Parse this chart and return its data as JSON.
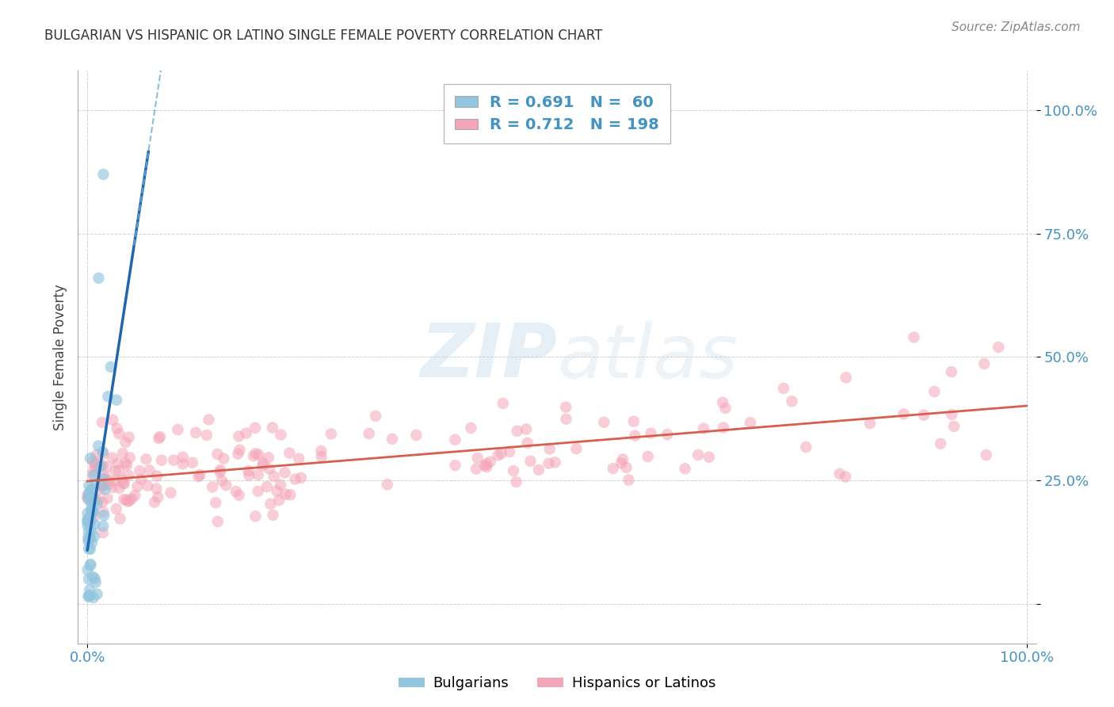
{
  "title": "BULGARIAN VS HISPANIC OR LATINO SINGLE FEMALE POVERTY CORRELATION CHART",
  "source": "Source: ZipAtlas.com",
  "ylabel": "Single Female Poverty",
  "legend1_R": "0.691",
  "legend1_N": "60",
  "legend2_R": "0.712",
  "legend2_N": "198",
  "blue_scatter_color": "#92c5de",
  "pink_scatter_color": "#f4a5b8",
  "blue_line_color": "#2166ac",
  "blue_dash_color": "#6baed6",
  "pink_line_color": "#d6604d",
  "tick_color": "#4393c3",
  "watermark": "ZIPatlas",
  "bg_color": "#ffffff",
  "xmin": 0.0,
  "xmax": 1.0,
  "ymin": -0.08,
  "ymax": 1.08,
  "n_blue": 60,
  "n_pink": 198,
  "blue_seed": 12,
  "pink_seed": 99
}
